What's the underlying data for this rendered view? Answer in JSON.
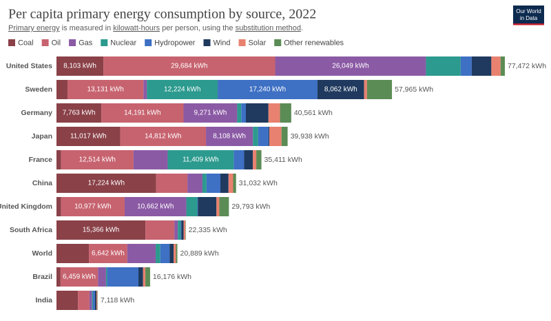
{
  "chart_data": {
    "type": "stacked-bar-horizontal",
    "title": "Per capita primary energy consumption by source, 2022",
    "subtitle": [
      "Primary energy",
      " is measured in ",
      "kilowatt-hours",
      " per person, using the ",
      "substitution method",
      "."
    ],
    "logo": [
      "Our World",
      "in Data"
    ],
    "categories": [
      "United States",
      "Sweden",
      "Germany",
      "Japan",
      "France",
      "China",
      "United Kingdom",
      "South Africa",
      "World",
      "Brazil",
      "India"
    ],
    "totals": [
      77472,
      57965,
      40561,
      39938,
      35411,
      31032,
      29793,
      22335,
      20889,
      16176,
      7118
    ],
    "total_labels": [
      "77,472 kWh",
      "57,965 kWh",
      "40,561 kWh",
      "39,938 kWh",
      "35,411 kWh",
      "31,032 kWh",
      "29,793 kWh",
      "22,335 kWh",
      "20,889 kWh",
      "16,176 kWh",
      "7,118 kWh"
    ],
    "series": [
      {
        "name": "Coal",
        "color": "#8a4148",
        "values": [
          8103,
          1900,
          7763,
          11017,
          800,
          17224,
          800,
          15366,
          5600,
          700,
          3700
        ],
        "value_labels": [
          "8,103 kWh",
          null,
          "7,763 kWh",
          "11,017 kWh",
          null,
          "17,224 kWh",
          null,
          "15,366 kWh",
          null,
          null,
          null
        ]
      },
      {
        "name": "Oil",
        "color": "#c7636f",
        "values": [
          29684,
          13131,
          14191,
          14812,
          12514,
          5400,
          10977,
          5000,
          6642,
          6459,
          2000
        ],
        "value_labels": [
          "29,684 kWh",
          "13,131 kWh",
          "14,191 kWh",
          "14,812 kWh",
          "12,514 kWh",
          null,
          "10,977 kWh",
          null,
          "6,642 kWh",
          "6,459 kWh",
          null
        ]
      },
      {
        "name": "Gas",
        "color": "#8b5aa5",
        "values": [
          26049,
          600,
          9271,
          8108,
          5900,
          2600,
          10662,
          600,
          4900,
          1400,
          450
        ],
        "value_labels": [
          "26,049 kWh",
          null,
          "9,271 kWh",
          "8,108 kWh",
          null,
          null,
          "10,662 kWh",
          null,
          null,
          null,
          null
        ]
      },
      {
        "name": "Nuclear",
        "color": "#2c9a8e",
        "values": [
          6000,
          12224,
          700,
          900,
          11409,
          700,
          1900,
          500,
          800,
          200,
          150
        ],
        "value_labels": [
          null,
          "12,224 kWh",
          null,
          null,
          "11,409 kWh",
          null,
          null,
          null,
          null,
          null,
          null
        ]
      },
      {
        "name": "Hydropower",
        "color": "#3e70c4",
        "values": [
          1900,
          17240,
          800,
          1800,
          1800,
          2400,
          100,
          100,
          1600,
          5400,
          350
        ],
        "value_labels": [
          null,
          "17,240 kWh",
          null,
          null,
          null,
          null,
          null,
          null,
          null,
          null,
          null
        ]
      },
      {
        "name": "Wind",
        "color": "#1f3a5e",
        "values": [
          3400,
          8062,
          3900,
          150,
          1500,
          1400,
          3200,
          400,
          700,
          800,
          250
        ],
        "value_labels": [
          null,
          "8,062 kWh",
          null,
          null,
          null,
          null,
          null,
          null,
          null,
          null,
          null
        ]
      },
      {
        "name": "Solar",
        "color": "#e8816f",
        "values": [
          1600,
          500,
          2000,
          2100,
          600,
          800,
          500,
          300,
          400,
          400,
          150
        ],
        "value_labels": [
          null,
          null,
          null,
          null,
          null,
          null,
          null,
          null,
          null,
          null,
          null
        ]
      },
      {
        "name": "Other renewables",
        "color": "#5c8c55",
        "values": [
          736,
          4308,
          1936,
          1051,
          888,
          508,
          1654,
          69,
          247,
          817,
          68
        ],
        "value_labels": [
          null,
          null,
          null,
          null,
          null,
          null,
          null,
          null,
          null,
          null,
          null
        ]
      }
    ]
  }
}
